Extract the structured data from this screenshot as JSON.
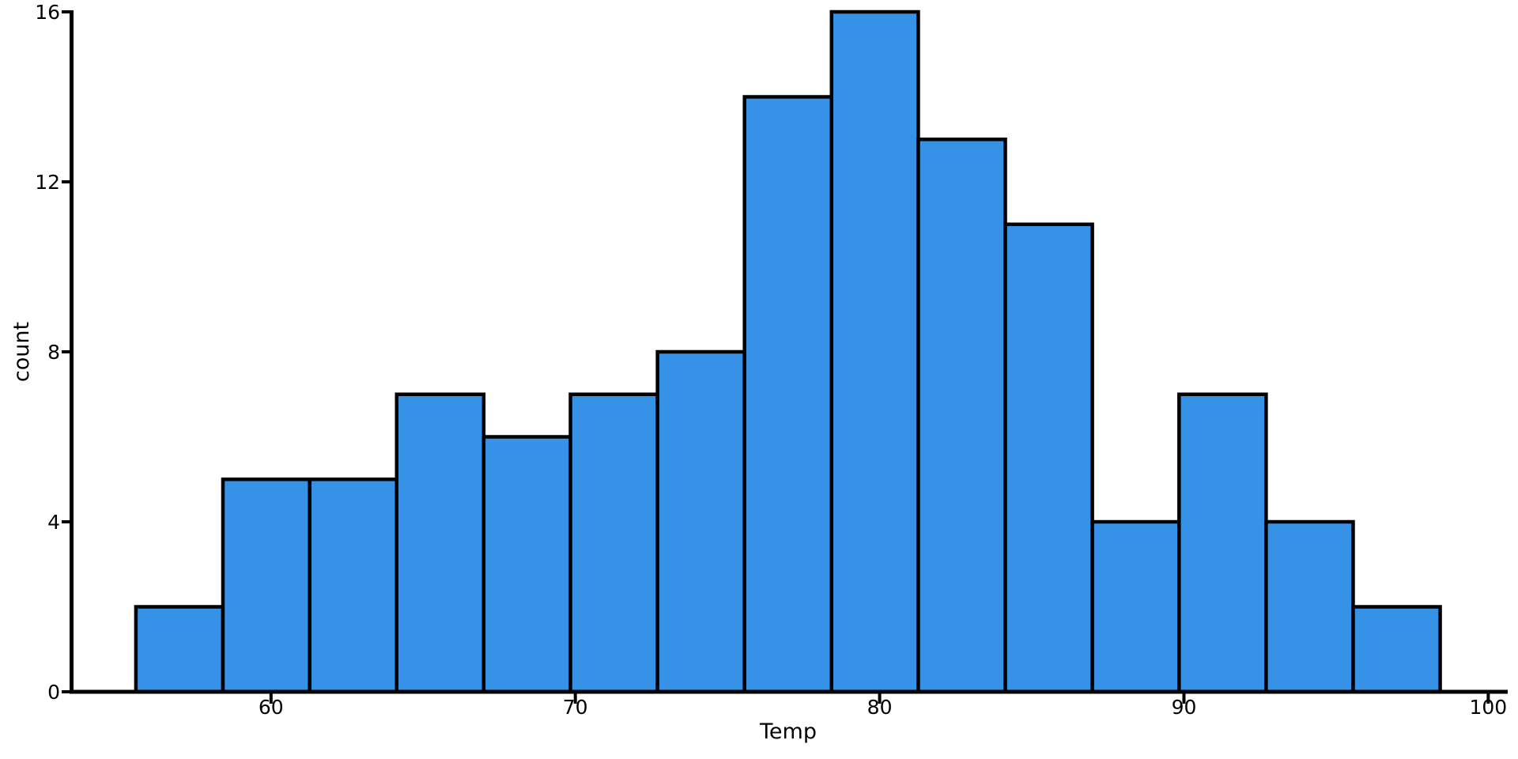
{
  "figure": {
    "background": "#ffffff"
  },
  "chart_data": {
    "type": "histogram",
    "title": "",
    "xlabel": "Temp",
    "ylabel": "count",
    "bin_edges": [
      55.56,
      58.42,
      61.27,
      64.13,
      66.99,
      69.84,
      72.7,
      75.56,
      78.42,
      81.27,
      84.13,
      86.99,
      89.84,
      92.7,
      95.56,
      98.42
    ],
    "counts": [
      2,
      5,
      5,
      7,
      6,
      7,
      8,
      14,
      16,
      13,
      11,
      4,
      7,
      4,
      2
    ],
    "x_ticks": [
      60,
      70,
      80,
      90,
      100
    ],
    "x_tick_labels": [
      "60",
      "70",
      "80",
      "90",
      "100"
    ],
    "y_ticks": [
      0,
      4,
      8,
      12,
      16
    ],
    "y_tick_labels": [
      "0",
      "4",
      "8",
      "12",
      "16"
    ],
    "xlim": [
      53.38,
      100.64
    ],
    "ylim": [
      0,
      16
    ],
    "grid": false,
    "bar_color": "#3692E6",
    "bar_edge_color": "#000000",
    "axis_color": "#000000",
    "text_color": "#000000"
  }
}
